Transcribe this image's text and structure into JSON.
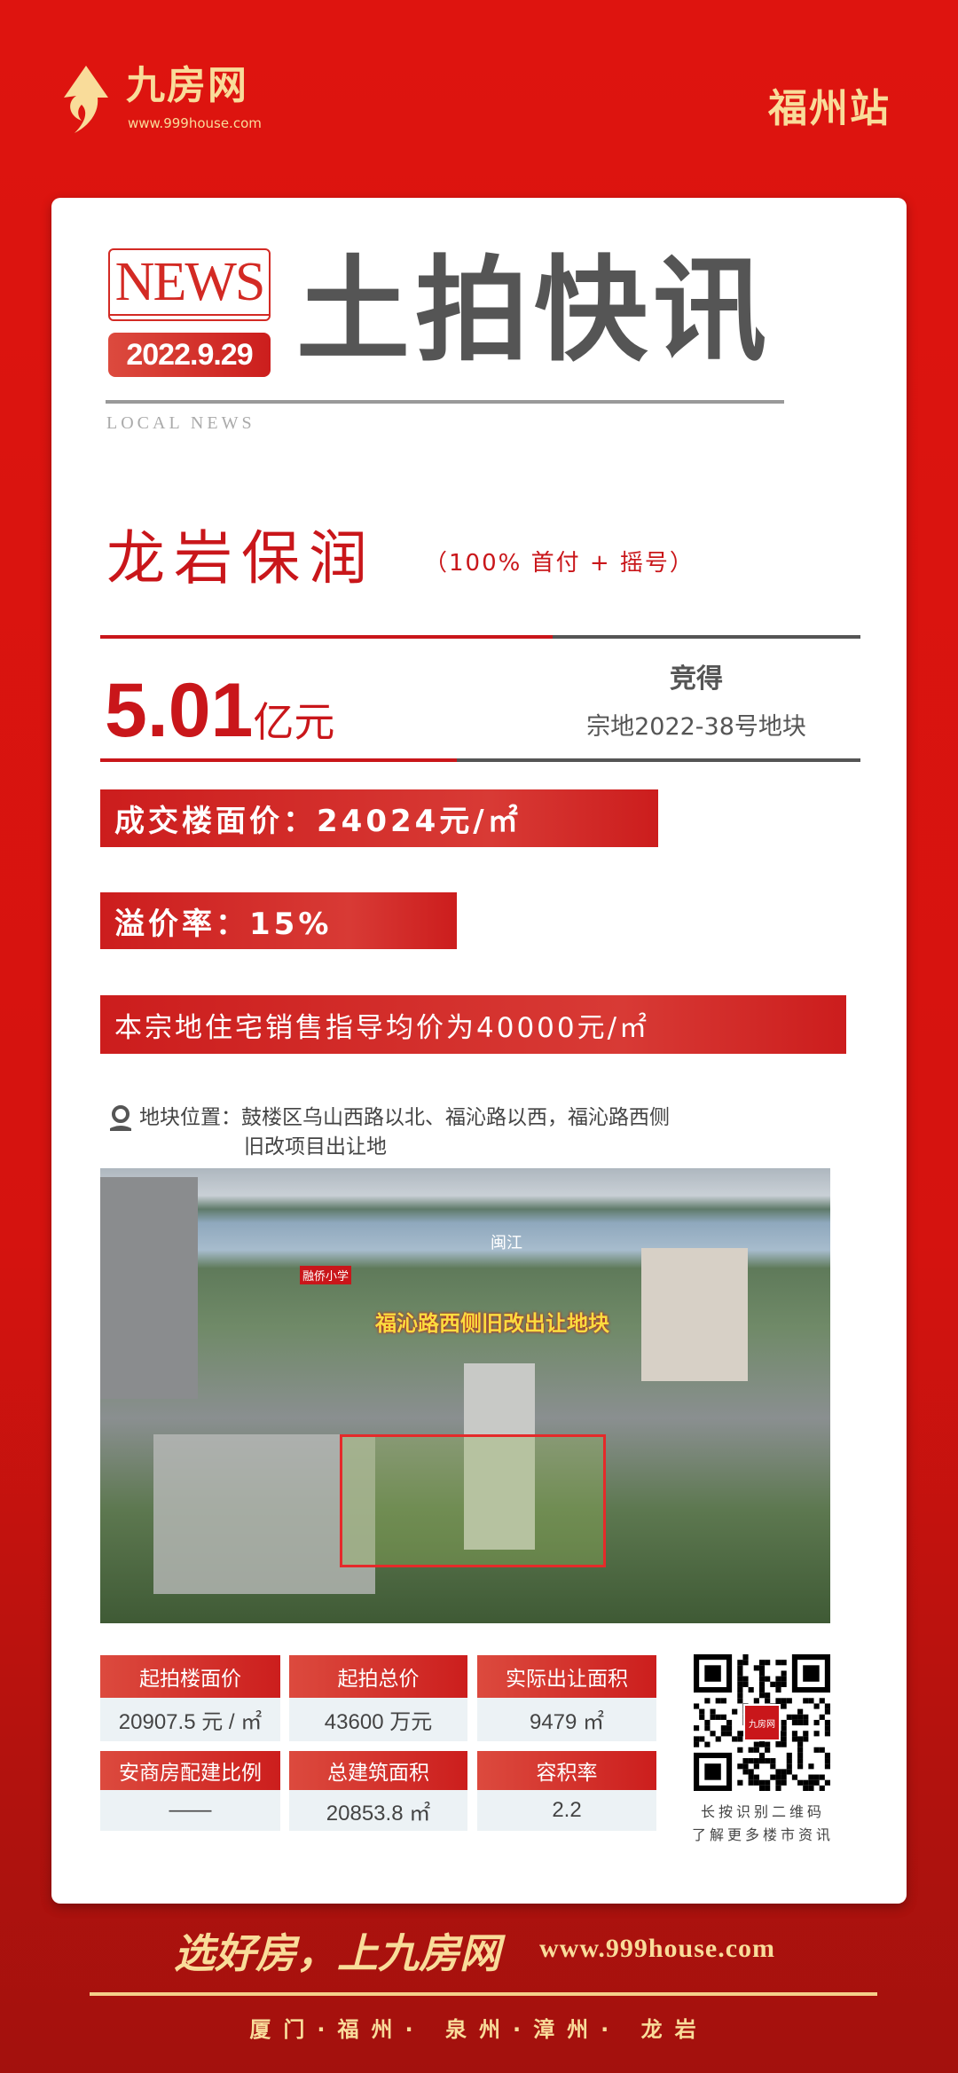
{
  "header": {
    "logo_text": "九房网",
    "logo_url": "www.999house.com",
    "station": "福州站"
  },
  "banner": {
    "news": "NEWS",
    "date": "2022.9.29",
    "title": "土拍快讯",
    "local_news": "LOCAL NEWS"
  },
  "deal": {
    "winner": "龙岩保润",
    "conditions": "（100% 首付 + 摇号）",
    "amount": "5.01",
    "amount_unit": "亿元",
    "won_label": "竞得",
    "lot": "宗地2022-38号地块"
  },
  "stats": {
    "floor_price": "成交楼面价：24024元/㎡",
    "premium": "溢价率：15%",
    "guide_price": "本宗地住宅销售指导均价为40000元/㎡"
  },
  "location": {
    "label": "地块位置：",
    "line1": "鼓楼区乌山西路以北、福沁路以西，福沁路西侧",
    "line2": "旧改项目出让地"
  },
  "photo": {
    "river_label": "闽江",
    "school_label": "融侨小学",
    "plot_label": "福沁路西侧旧改出让地块"
  },
  "table": [
    [
      {
        "h": "起拍楼面价",
        "v": "20907.5 元 / ㎡"
      },
      {
        "h": "起拍总价",
        "v": "43600 万元"
      },
      {
        "h": "实际出让面积",
        "v": "9479 ㎡"
      }
    ],
    [
      {
        "h": "安商房配建比例",
        "v": "——"
      },
      {
        "h": "总建筑面积",
        "v": "20853.8 ㎡"
      },
      {
        "h": "容积率",
        "v": "2.2"
      }
    ]
  ],
  "qr": {
    "center_logo": "九房网",
    "line1": "长按识别二维码",
    "line2": "了解更多楼市资讯"
  },
  "footer": {
    "slogan": "选好房，上九房网",
    "url": "www.999house.com",
    "cities": "厦门·福州· 泉州·漳州· 龙岩"
  },
  "colors": {
    "brand_red": "#d8140f",
    "gold": "#f9dc9a",
    "accent_red": "#c9161a"
  }
}
